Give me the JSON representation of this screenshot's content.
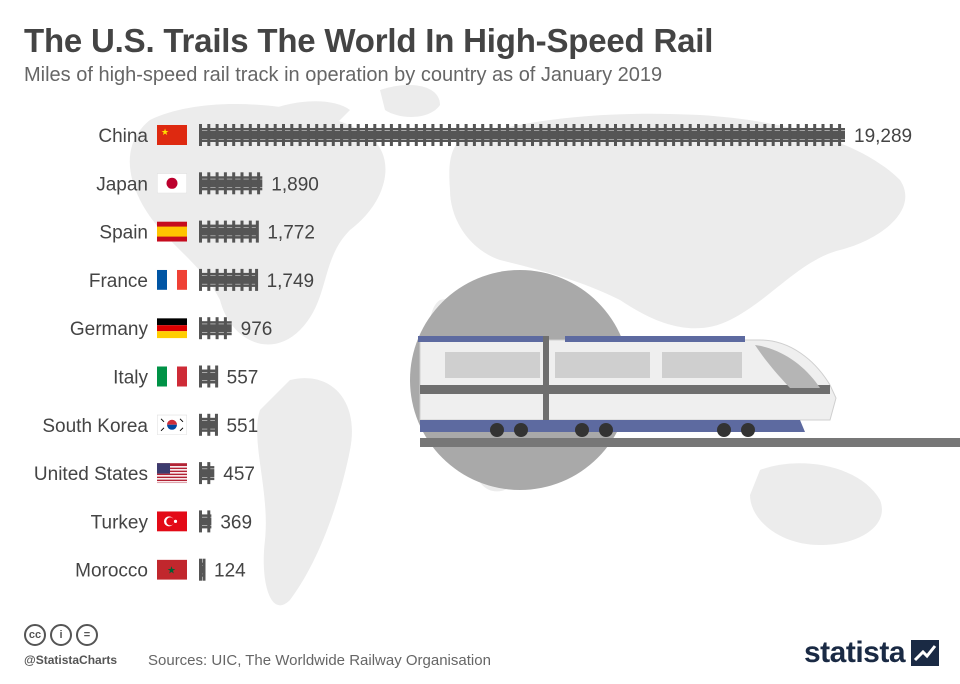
{
  "title": "The U.S. Trails The World In High-Speed Rail",
  "subtitle": "Miles of high-speed rail track in operation by country as of January 2019",
  "chart_data": {
    "type": "bar",
    "orientation": "horizontal",
    "categories": [
      "China",
      "Japan",
      "Spain",
      "France",
      "Germany",
      "Italy",
      "South Korea",
      "United States",
      "Turkey",
      "Morocco"
    ],
    "values": [
      19289,
      1890,
      1772,
      1749,
      976,
      557,
      551,
      457,
      369,
      124
    ],
    "value_labels": [
      "19,289",
      "1,890",
      "1,772",
      "1,749",
      "976",
      "557",
      "551",
      "457",
      "369",
      "124"
    ],
    "flags": [
      "china-flag",
      "japan-flag",
      "spain-flag",
      "france-flag",
      "germany-flag",
      "italy-flag",
      "south-korea-flag",
      "united-states-flag",
      "turkey-flag",
      "morocco-flag"
    ],
    "bar_style": "railway-track",
    "bar_color": "#555555"
  },
  "footer": {
    "handle": "@StatistaCharts",
    "sources": "Sources: UIC, The Worldwide Railway Organisation",
    "brand": "statista",
    "license_icons": [
      "cc-icon",
      "by-icon",
      "nd-icon"
    ],
    "license_glyphs": [
      "cc",
      "i",
      "="
    ]
  },
  "colors": {
    "title": "#444444",
    "track": "#555555",
    "map": "#ececec",
    "train_stripe": "#5d6aa0",
    "brand": "#1a2a44"
  }
}
